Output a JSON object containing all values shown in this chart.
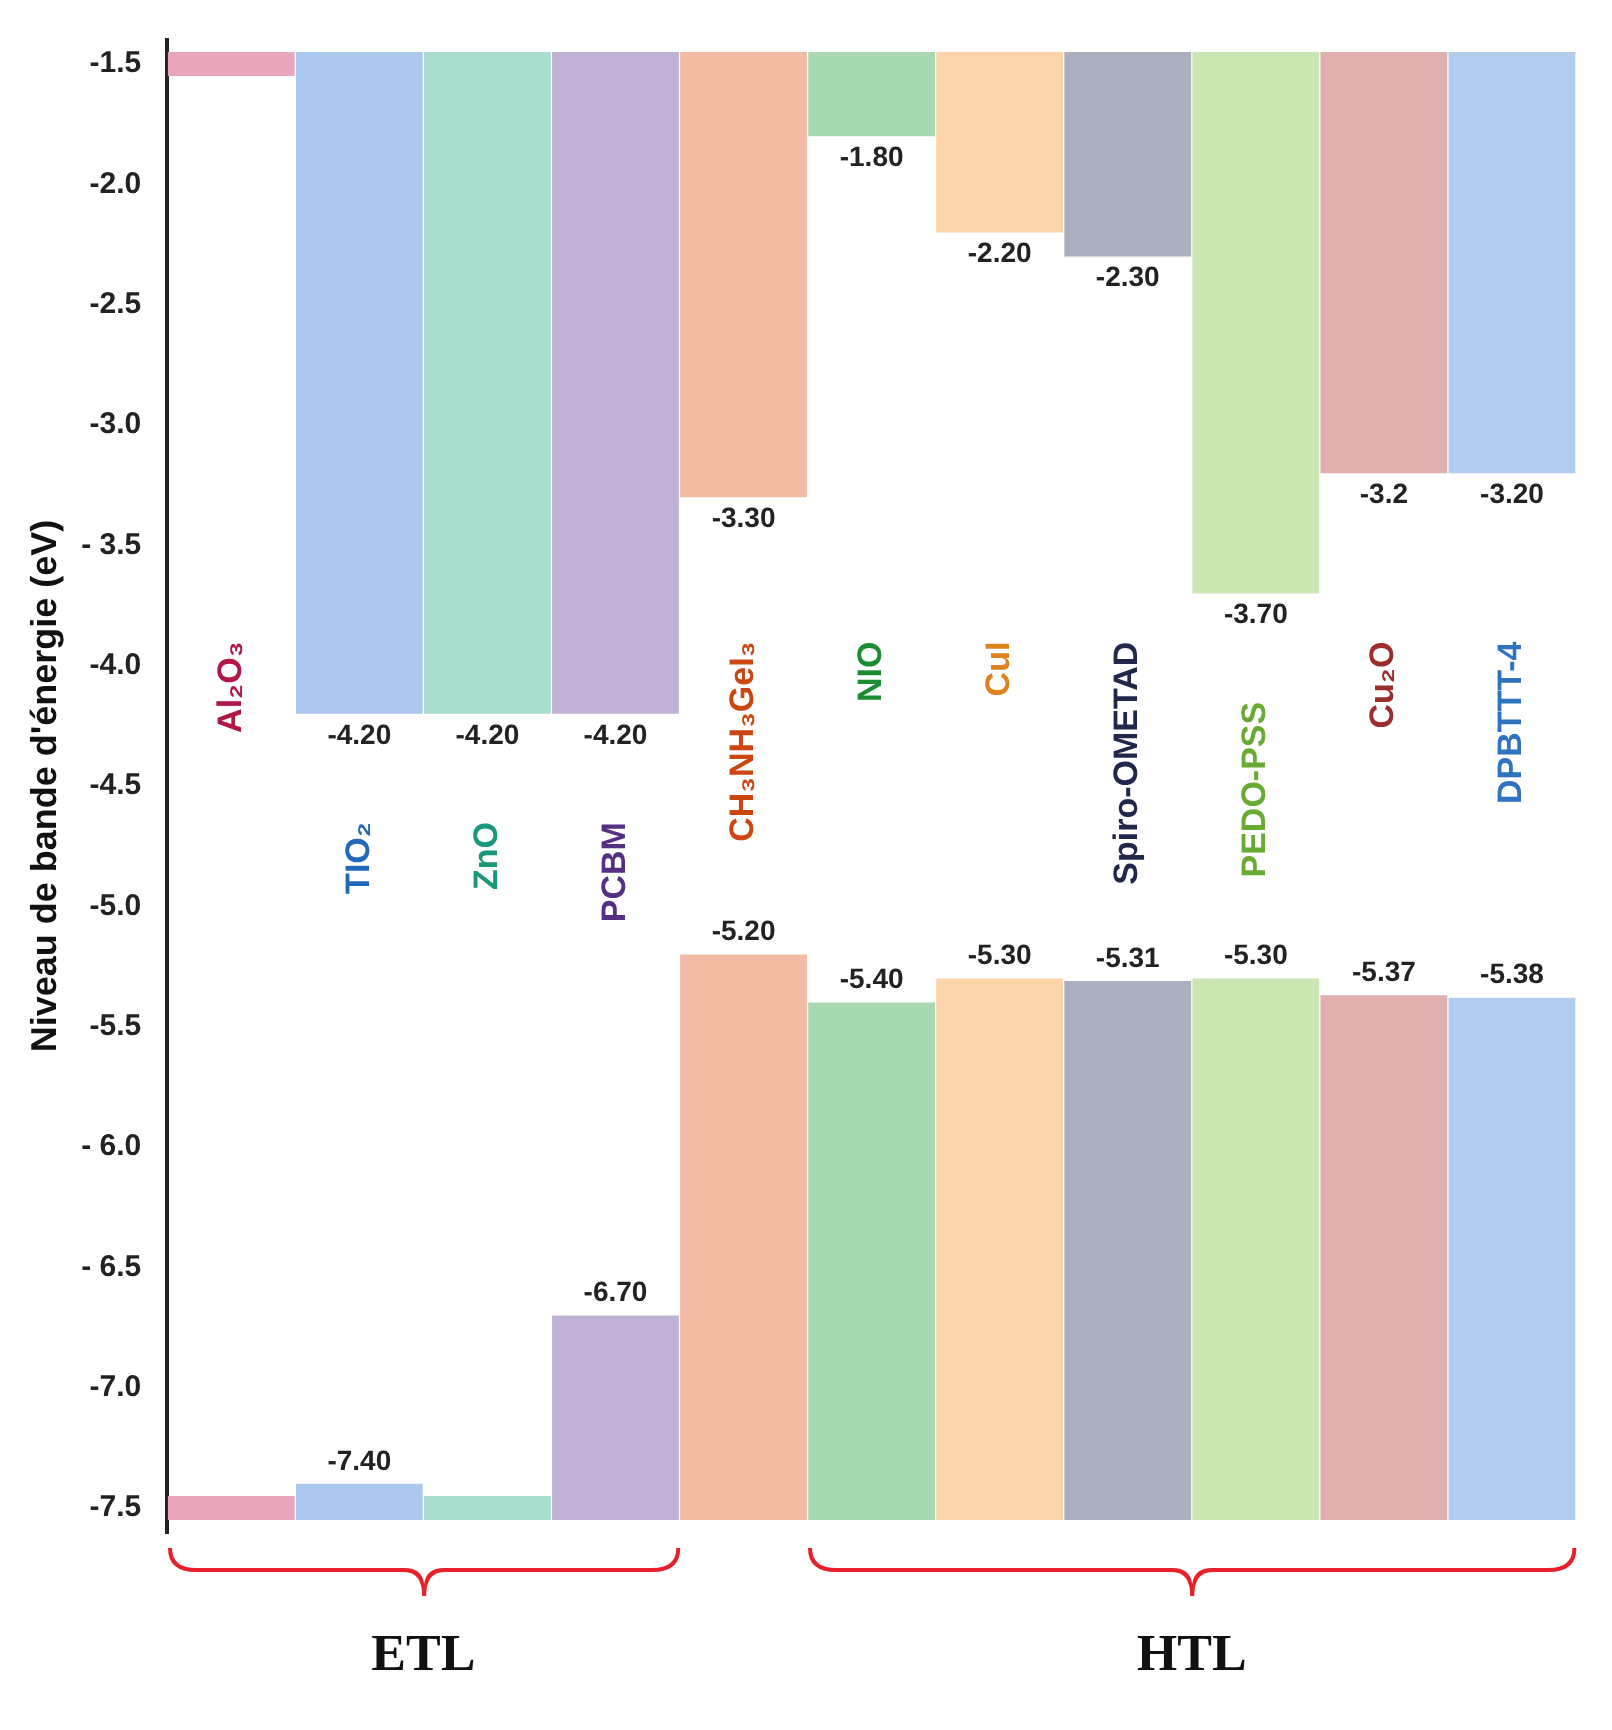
{
  "chart_data": {
    "type": "bar",
    "ylabel": "Niveau de bande d'énergie (eV)",
    "categories": [
      "Al₂O₃",
      "TIO₂",
      "ZnO",
      "PCBM",
      "CH₃NH₃GeI₃",
      "NIO",
      "CuI",
      "Spiro-OMETAD",
      "PEDO-PSS",
      "Cu₂O",
      "DPBTTT-4"
    ],
    "series": [
      {
        "colors": [
          "#e8a6bb",
          "#abc9ec",
          "#a8ddd0",
          "#c1b1d5",
          "#f4bba4",
          "#a9d9b3",
          "#fcd4aa",
          "#aaaebd",
          "#c9e6b3",
          "#dfb0b0",
          "#b1ceef"
        ],
        "base": [
          -1.45,
          -1.45,
          -1.45,
          -1.45,
          -1.45,
          -1.45,
          -1.45,
          -1.45,
          -1.45,
          -1.45,
          -1.45
        ],
        "values": [
          -0.1,
          -2.75,
          -2.75,
          -2.75,
          -1.85,
          -0.35,
          -0.75,
          -0.85,
          -2.25,
          -1.75,
          -1.75
        ],
        "value_labels": [
          null,
          "-4.20",
          "-4.20",
          "-4.20",
          "-3.30",
          "-1.80",
          "-2.20",
          "-2.30",
          "-3.70",
          "-3.2",
          "-3.20"
        ]
      },
      {
        "colors": [
          "#e8a6bb",
          "#abc9ec",
          "#a8ddd0",
          "#c1b1d5",
          "#f4bba4",
          "#a9d9b3",
          "#fcd4aa",
          "#aaaebd",
          "#c9e6b3",
          "#dfb0b0",
          "#b1ceef"
        ],
        "base": [
          -7.55,
          -7.55,
          -7.55,
          -7.55,
          -7.55,
          -7.55,
          -7.55,
          -7.55,
          -7.55,
          -7.55,
          -7.55
        ],
        "values": [
          0.1,
          0.15,
          0.1,
          0.85,
          2.35,
          2.15,
          2.25,
          2.24,
          2.25,
          2.18,
          2.17
        ],
        "value_labels": [
          null,
          "-7.40",
          null,
          "-6.70",
          "-5.20",
          "-5.40",
          "-5.30",
          "-5.31",
          "-5.30",
          "-5.37",
          "-5.38"
        ]
      }
    ],
    "ylim": [
      -7.6,
      -1.4
    ],
    "yticks": [
      {
        "value": -1.5,
        "label": "-1.5"
      },
      {
        "value": -2,
        "label": "-2.0"
      },
      {
        "value": -2.5,
        "label": "-2.5"
      },
      {
        "value": -3,
        "label": "-3.0"
      },
      {
        "value": -3.5,
        "label": "- 3.5"
      },
      {
        "value": -4,
        "label": "-4.0"
      },
      {
        "value": -4.5,
        "label": "-4.5"
      },
      {
        "value": -5,
        "label": "-5.0"
      },
      {
        "value": -5.5,
        "label": "-5.5"
      },
      {
        "value": -6,
        "label": "- 6.0"
      },
      {
        "value": -6.5,
        "label": "- 6.5"
      },
      {
        "value": -7,
        "label": "-7.0"
      },
      {
        "value": -7.5,
        "label": "-7.5"
      }
    ],
    "annotations": [
      "ETL",
      "HTL"
    ]
  }
}
